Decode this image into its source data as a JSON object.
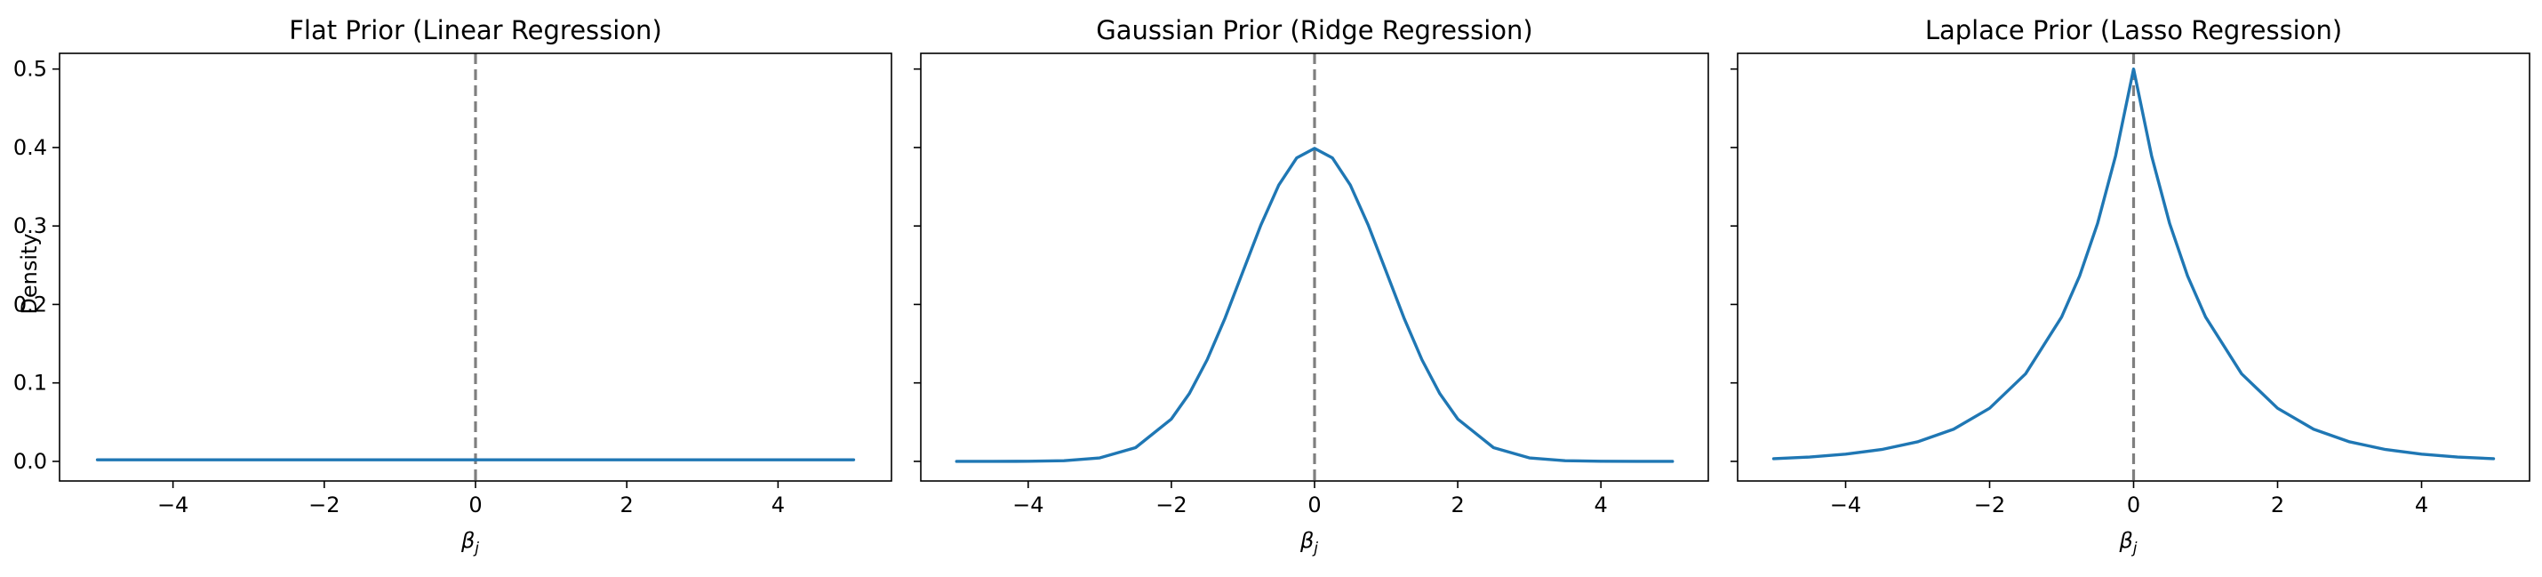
{
  "figure": {
    "shared_y_label": "Density",
    "x_label_base": "β",
    "x_label_sub": "j",
    "line_color": "#1f77b4",
    "reference_line_color": "#7f7f7f"
  },
  "chart_data": [
    {
      "type": "line",
      "title": "Flat Prior (Linear Regression)",
      "xlabel": "βj",
      "ylabel": "Density",
      "xlim": [
        -5.5,
        5.5
      ],
      "ylim": [
        -0.025,
        0.52
      ],
      "xticks": [
        -4,
        -2,
        0,
        2,
        4
      ],
      "xtick_labels": [
        "−4",
        "−2",
        "0",
        "2",
        "4"
      ],
      "yticks": [
        0.0,
        0.1,
        0.2,
        0.3,
        0.4,
        0.5
      ],
      "ytick_labels": [
        "0.0",
        "0.1",
        "0.2",
        "0.3",
        "0.4",
        "0.5"
      ],
      "y_ticklabels_visible": true,
      "reference_line": {
        "x": 0,
        "style": "dashed",
        "color": "#7f7f7f"
      },
      "series": [
        {
          "color": "#1f77b4",
          "x": [
            -5,
            -4,
            -3,
            -2,
            -1,
            0,
            1,
            2,
            3,
            4,
            5
          ],
          "y": [
            0.002,
            0.002,
            0.002,
            0.002,
            0.002,
            0.002,
            0.002,
            0.002,
            0.002,
            0.002,
            0.002
          ]
        }
      ],
      "grid": false
    },
    {
      "type": "line",
      "title": "Gaussian Prior (Ridge Regression)",
      "xlabel": "βj",
      "ylabel": "",
      "xlim": [
        -5.5,
        5.5
      ],
      "ylim": [
        -0.025,
        0.52
      ],
      "xticks": [
        -4,
        -2,
        0,
        2,
        4
      ],
      "xtick_labels": [
        "−4",
        "−2",
        "0",
        "2",
        "4"
      ],
      "yticks": [
        0.0,
        0.1,
        0.2,
        0.3,
        0.4,
        0.5
      ],
      "ytick_labels": [
        "0.0",
        "0.1",
        "0.2",
        "0.3",
        "0.4",
        "0.5"
      ],
      "y_ticklabels_visible": false,
      "reference_line": {
        "x": 0,
        "style": "dashed",
        "color": "#7f7f7f"
      },
      "series": [
        {
          "color": "#1f77b4",
          "x": [
            -5,
            -4.5,
            -4,
            -3.5,
            -3,
            -2.5,
            -2,
            -1.75,
            -1.5,
            -1.25,
            -1,
            -0.75,
            -0.5,
            -0.25,
            0,
            0.25,
            0.5,
            0.75,
            1,
            1.25,
            1.5,
            1.75,
            2,
            2.5,
            3,
            3.5,
            4,
            4.5,
            5
          ],
          "y": [
            0.0,
            0.0,
            0.0001,
            0.0009,
            0.0044,
            0.0175,
            0.054,
            0.0863,
            0.1295,
            0.1826,
            0.242,
            0.3011,
            0.3521,
            0.3867,
            0.3989,
            0.3867,
            0.3521,
            0.3011,
            0.242,
            0.1826,
            0.1295,
            0.0863,
            0.054,
            0.0175,
            0.0044,
            0.0009,
            0.0001,
            0.0,
            0.0
          ]
        }
      ],
      "grid": false
    },
    {
      "type": "line",
      "title": "Laplace Prior (Lasso Regression)",
      "xlabel": "βj",
      "ylabel": "",
      "xlim": [
        -5.5,
        5.5
      ],
      "ylim": [
        -0.025,
        0.52
      ],
      "xticks": [
        -4,
        -2,
        0,
        2,
        4
      ],
      "xtick_labels": [
        "−4",
        "−2",
        "0",
        "2",
        "4"
      ],
      "yticks": [
        0.0,
        0.1,
        0.2,
        0.3,
        0.4,
        0.5
      ],
      "ytick_labels": [
        "0.0",
        "0.1",
        "0.2",
        "0.3",
        "0.4",
        "0.5"
      ],
      "y_ticklabels_visible": false,
      "reference_line": {
        "x": 0,
        "style": "dashed",
        "color": "#7f7f7f"
      },
      "series": [
        {
          "color": "#1f77b4",
          "x": [
            -5,
            -4.5,
            -4,
            -3.5,
            -3,
            -2.5,
            -2,
            -1.5,
            -1,
            -0.75,
            -0.5,
            -0.25,
            0,
            0.25,
            0.5,
            0.75,
            1,
            1.5,
            2,
            2.5,
            3,
            3.5,
            4,
            4.5,
            5
          ],
          "y": [
            0.0034,
            0.0055,
            0.0092,
            0.0151,
            0.0249,
            0.041,
            0.0677,
            0.1116,
            0.184,
            0.2362,
            0.3033,
            0.3894,
            0.5,
            0.3894,
            0.3033,
            0.2362,
            0.184,
            0.1116,
            0.0677,
            0.041,
            0.0249,
            0.0151,
            0.0092,
            0.0055,
            0.0034
          ]
        }
      ],
      "grid": false
    }
  ]
}
